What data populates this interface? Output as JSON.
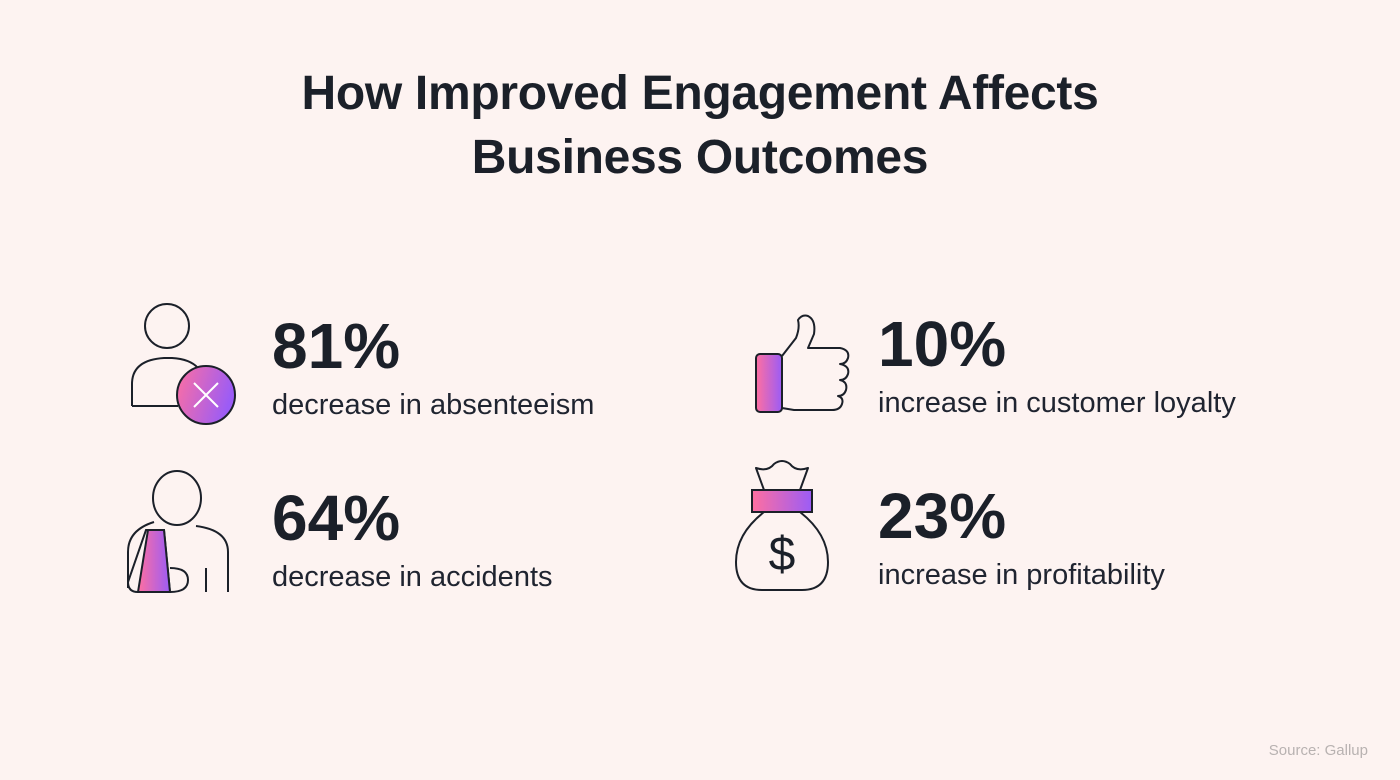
{
  "title": {
    "line1": "How Improved Engagement Affects",
    "line2": "Business Outcomes"
  },
  "stats": [
    {
      "value": "81%",
      "label": "decrease in absenteeism",
      "icon": "person-x-icon"
    },
    {
      "value": "10%",
      "label": "increase in customer loyalty",
      "icon": "thumbs-up-icon"
    },
    {
      "value": "64%",
      "label": "decrease in accidents",
      "icon": "person-arm-sling-icon"
    },
    {
      "value": "23%",
      "label": "increase in profitability",
      "icon": "money-bag-icon"
    }
  ],
  "source": "Source: Gallup",
  "colors": {
    "background": "#fdf3f1",
    "text": "#1b2029",
    "gradient_start": "#ff6fa0",
    "gradient_end": "#9b5cf6"
  }
}
